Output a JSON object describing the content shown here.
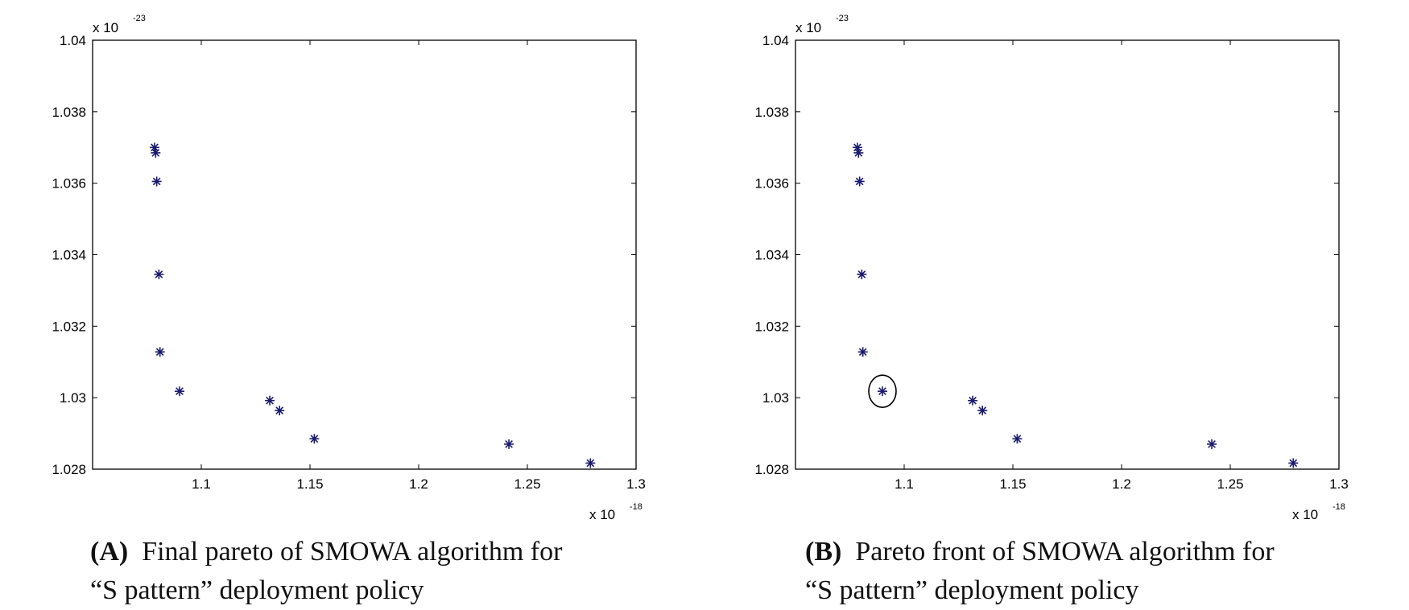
{
  "chart_data": [
    {
      "type": "scatter",
      "title": "",
      "xlabel": "",
      "ylabel": "",
      "x_multiplier": "x 10",
      "x_exponent": "-18",
      "y_multiplier": "x 10",
      "y_exponent": "-23",
      "xlim": [
        1.05,
        1.3
      ],
      "ylim": [
        1.028,
        1.04
      ],
      "xticks": [
        "1.1",
        "1.15",
        "1.2",
        "1.25",
        "1.3"
      ],
      "yticks": [
        "1.028",
        "1.03",
        "1.032",
        "1.034",
        "1.036",
        "1.038",
        "1.04"
      ],
      "grid": false,
      "marker": "*",
      "marker_color": "#1a1a6e",
      "series": [
        {
          "x": [
            1.0785,
            1.079,
            1.0795,
            1.0805,
            1.081,
            1.09,
            1.1315,
            1.136,
            1.152,
            1.2415,
            1.279
          ],
          "y": [
            1.037,
            1.03685,
            1.03605,
            1.03345,
            1.03128,
            1.03018,
            1.02992,
            1.02964,
            1.02885,
            1.0287,
            1.02817
          ]
        }
      ],
      "caption_tag": "(A)",
      "caption_line1": "Final pareto of  SMOWA  algorithm for",
      "caption_line2": "“S pattern” deployment policy"
    },
    {
      "type": "scatter",
      "title": "",
      "xlabel": "",
      "ylabel": "",
      "x_multiplier": "x 10",
      "x_exponent": "-18",
      "y_multiplier": "x 10",
      "y_exponent": "-23",
      "xlim": [
        1.05,
        1.3
      ],
      "ylim": [
        1.028,
        1.04
      ],
      "xticks": [
        "1.1",
        "1.15",
        "1.2",
        "1.25",
        "1.3"
      ],
      "yticks": [
        "1.028",
        "1.03",
        "1.032",
        "1.034",
        "1.036",
        "1.038",
        "1.04"
      ],
      "grid": false,
      "marker": "*",
      "marker_color": "#1a1a6e",
      "series": [
        {
          "x": [
            1.0785,
            1.079,
            1.0795,
            1.0805,
            1.081,
            1.09,
            1.1315,
            1.136,
            1.152,
            1.2415,
            1.279
          ],
          "y": [
            1.037,
            1.03685,
            1.03605,
            1.03345,
            1.03128,
            1.03018,
            1.02992,
            1.02964,
            1.02885,
            1.0287,
            1.02817
          ]
        }
      ],
      "highlight": {
        "x": 1.09,
        "y": 1.03018
      },
      "caption_tag": "(B)",
      "caption_line1": "Pareto front of  SMOWA algorithm for",
      "caption_line2": "“S pattern” deployment policy"
    }
  ]
}
